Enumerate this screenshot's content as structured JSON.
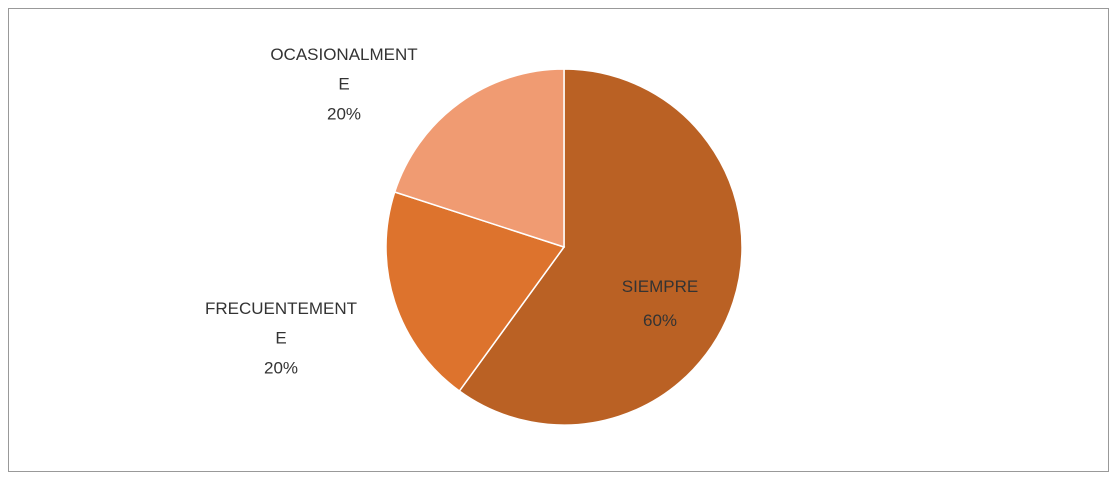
{
  "chart_data": {
    "type": "pie",
    "categories": [
      "SIEMPRE",
      "FRECUENTEMENTE",
      "OCASIONALMENTE"
    ],
    "values": [
      60,
      20,
      20
    ],
    "value_labels": [
      "60%",
      "20%",
      "20%"
    ],
    "colors": [
      "#ba6124",
      "#dd732d",
      "#f09b72"
    ]
  }
}
